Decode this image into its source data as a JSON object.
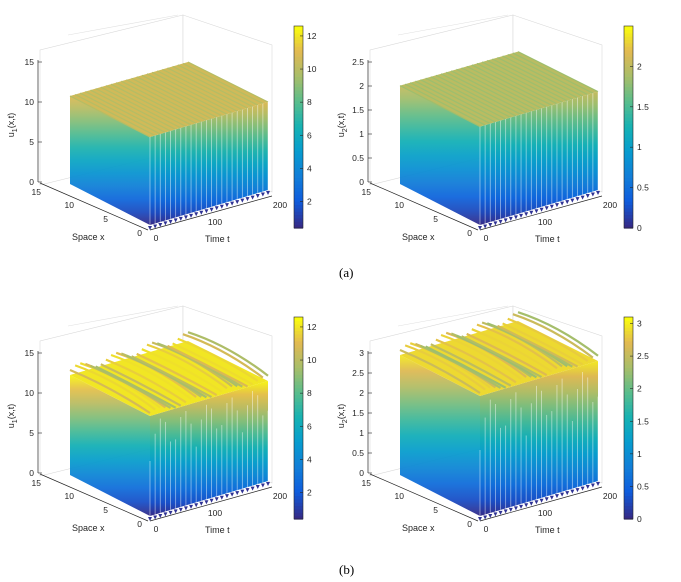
{
  "figure": {
    "caption_a": "(a)",
    "caption_b": "(b)"
  },
  "chart_data": [
    {
      "id": "a1",
      "panel": "a",
      "type": "surface3d",
      "zlabel_base": "u",
      "zlabel_sub": "1",
      "zlabel_tail": "(x,t)",
      "xlabel": "Time t",
      "ylabel": "Space x",
      "xlim": [
        0,
        200
      ],
      "ylim": [
        0,
        15
      ],
      "zlim": [
        0,
        15
      ],
      "x_ticks": [
        "0",
        "100",
        "200"
      ],
      "y_ticks": [
        "0",
        "5",
        "10",
        "15"
      ],
      "z_ticks": [
        "0",
        "5",
        "10",
        "15"
      ],
      "colorbar_ticks": [
        "2",
        "4",
        "6",
        "8",
        "10",
        "12"
      ],
      "colorbar_range": [
        0.4,
        12.6
      ],
      "surface": {
        "pattern": "periodic-stationary-in-space",
        "u_min": 0.4,
        "u_max": 11.0,
        "spikes": 24
      }
    },
    {
      "id": "a2",
      "panel": "a",
      "type": "surface3d",
      "zlabel_base": "u",
      "zlabel_sub": "2",
      "zlabel_tail": "(x,t)",
      "xlabel": "Time t",
      "ylabel": "Space x",
      "xlim": [
        0,
        200
      ],
      "ylim": [
        0,
        15
      ],
      "zlim": [
        0,
        2.5
      ],
      "x_ticks": [
        "0",
        "100",
        "200"
      ],
      "y_ticks": [
        "0",
        "5",
        "10",
        "15"
      ],
      "z_ticks": [
        "0",
        "0.5",
        "1",
        "1.5",
        "2",
        "2.5"
      ],
      "colorbar_ticks": [
        "0",
        "0.5",
        "1",
        "1.5",
        "2"
      ],
      "colorbar_range": [
        0,
        2.5
      ],
      "surface": {
        "pattern": "periodic-stationary-in-space",
        "u_min": 0.0,
        "u_max": 2.05,
        "spikes": 24
      }
    },
    {
      "id": "b1",
      "panel": "b",
      "type": "surface3d",
      "zlabel_base": "u",
      "zlabel_sub": "1",
      "zlabel_tail": "(x,t)",
      "xlabel": "Time t",
      "ylabel": "Space x",
      "xlim": [
        0,
        200
      ],
      "ylim": [
        0,
        15
      ],
      "zlim": [
        0,
        15
      ],
      "x_ticks": [
        "0",
        "100",
        "200"
      ],
      "y_ticks": [
        "0",
        "5",
        "10",
        "15"
      ],
      "z_ticks": [
        "0",
        "5",
        "10",
        "15"
      ],
      "colorbar_ticks": [
        "2",
        "4",
        "6",
        "8",
        "10",
        "12"
      ],
      "colorbar_range": [
        0.4,
        12.6
      ],
      "surface": {
        "pattern": "spatiotemporal-oscillation",
        "u_min": 0.4,
        "u_max": 12.5,
        "spikes": 24
      }
    },
    {
      "id": "b2",
      "panel": "b",
      "type": "surface3d",
      "zlabel_base": "u",
      "zlabel_sub": "2",
      "zlabel_tail": "(x,t)",
      "xlabel": "Time t",
      "ylabel": "Space x",
      "xlim": [
        0,
        200
      ],
      "ylim": [
        0,
        15
      ],
      "zlim": [
        0,
        3
      ],
      "x_ticks": [
        "0",
        "100",
        "200"
      ],
      "y_ticks": [
        "0",
        "5",
        "10",
        "15"
      ],
      "z_ticks": [
        "0",
        "0.5",
        "1",
        "1.5",
        "2",
        "2.5",
        "3"
      ],
      "colorbar_ticks": [
        "0",
        "0.5",
        "1",
        "1.5",
        "2",
        "2.5",
        "3"
      ],
      "colorbar_range": [
        0,
        3.1
      ],
      "surface": {
        "pattern": "spatiotemporal-oscillation",
        "u_min": 0.0,
        "u_max": 3.0,
        "spikes": 24
      }
    }
  ]
}
